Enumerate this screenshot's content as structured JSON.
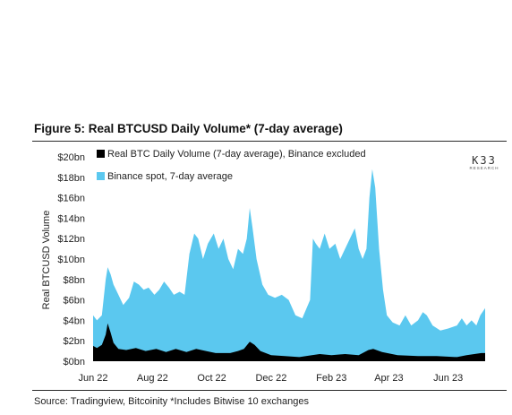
{
  "figure": {
    "title": "Figure 5: Real BTCUSD Daily Volume* (7-day average)",
    "source": "Source: Tradingview, Bitcoinity *Includes Bitwise 10 exchanges"
  },
  "logo": {
    "main": "K33",
    "sub": "RESEARCH"
  },
  "colors": {
    "binance": "#5bc8ef",
    "real": "#000000"
  },
  "chart_data": {
    "type": "area",
    "title": "",
    "xlabel": "",
    "ylabel": "Real BTCUSD Volume",
    "ylim": [
      0,
      20
    ],
    "y_unit": "bn USD",
    "yticks": [
      0,
      2,
      4,
      6,
      8,
      10,
      12,
      14,
      16,
      18,
      20
    ],
    "ytick_labels": [
      "$0bn",
      "$2bn",
      "$4bn",
      "$6bn",
      "$8bn",
      "$10bn",
      "$12bn",
      "$14bn",
      "$16bn",
      "$18bn",
      "$20bn"
    ],
    "xlim": [
      "2022-06-01",
      "2023-07-09"
    ],
    "xticks": [
      "2022-06-01",
      "2022-08-01",
      "2022-10-01",
      "2022-12-01",
      "2023-02-01",
      "2023-04-01",
      "2023-06-01"
    ],
    "xtick_labels": [
      "Jun 22",
      "Aug 22",
      "Oct 22",
      "Dec 22",
      "Feb 23",
      "Apr 23",
      "Jun 23"
    ],
    "legend": [
      "Real BTC Daily Volume (7-day average), Binance excluded",
      "Binance spot, 7-day average"
    ],
    "legend_position": "top-left",
    "stacked": true,
    "series": [
      {
        "name": "Real BTC Daily Volume (7-day average), Binance excluded",
        "color": "#000000",
        "points": [
          [
            "2022-06-01",
            1.5
          ],
          [
            "2022-06-05",
            1.3
          ],
          [
            "2022-06-10",
            1.6
          ],
          [
            "2022-06-14",
            2.6
          ],
          [
            "2022-06-16",
            3.7
          ],
          [
            "2022-06-19",
            2.8
          ],
          [
            "2022-06-22",
            1.8
          ],
          [
            "2022-06-27",
            1.2
          ],
          [
            "2022-07-05",
            1.1
          ],
          [
            "2022-07-15",
            1.3
          ],
          [
            "2022-07-25",
            1.0
          ],
          [
            "2022-08-05",
            1.2
          ],
          [
            "2022-08-15",
            0.9
          ],
          [
            "2022-08-25",
            1.2
          ],
          [
            "2022-09-05",
            0.9
          ],
          [
            "2022-09-15",
            1.2
          ],
          [
            "2022-09-25",
            1.0
          ],
          [
            "2022-10-05",
            0.8
          ],
          [
            "2022-10-20",
            0.8
          ],
          [
            "2022-10-28",
            1.0
          ],
          [
            "2022-11-03",
            1.2
          ],
          [
            "2022-11-09",
            1.9
          ],
          [
            "2022-11-14",
            1.6
          ],
          [
            "2022-11-20",
            1.0
          ],
          [
            "2022-12-01",
            0.6
          ],
          [
            "2022-12-15",
            0.5
          ],
          [
            "2022-12-30",
            0.4
          ],
          [
            "2023-01-12",
            0.6
          ],
          [
            "2023-01-20",
            0.7
          ],
          [
            "2023-02-01",
            0.6
          ],
          [
            "2023-02-15",
            0.7
          ],
          [
            "2023-03-01",
            0.6
          ],
          [
            "2023-03-11",
            1.1
          ],
          [
            "2023-03-16",
            1.2
          ],
          [
            "2023-03-25",
            0.9
          ],
          [
            "2023-04-10",
            0.6
          ],
          [
            "2023-05-01",
            0.5
          ],
          [
            "2023-05-20",
            0.5
          ],
          [
            "2023-06-10",
            0.4
          ],
          [
            "2023-06-20",
            0.6
          ],
          [
            "2023-07-05",
            0.8
          ],
          [
            "2023-07-09",
            0.8
          ]
        ]
      },
      {
        "name": "Binance spot, 7-day average",
        "color": "#5bc8ef",
        "points": [
          [
            "2022-06-01",
            4.5
          ],
          [
            "2022-06-05",
            4.0
          ],
          [
            "2022-06-10",
            4.5
          ],
          [
            "2022-06-14",
            8.0
          ],
          [
            "2022-06-16",
            9.2
          ],
          [
            "2022-06-19",
            8.5
          ],
          [
            "2022-06-22",
            7.5
          ],
          [
            "2022-06-27",
            6.5
          ],
          [
            "2022-07-02",
            5.5
          ],
          [
            "2022-07-08",
            6.2
          ],
          [
            "2022-07-13",
            7.8
          ],
          [
            "2022-07-18",
            7.5
          ],
          [
            "2022-07-23",
            7.0
          ],
          [
            "2022-07-28",
            7.2
          ],
          [
            "2022-08-03",
            6.5
          ],
          [
            "2022-08-08",
            7.0
          ],
          [
            "2022-08-13",
            7.8
          ],
          [
            "2022-08-18",
            7.2
          ],
          [
            "2022-08-23",
            6.5
          ],
          [
            "2022-08-29",
            6.8
          ],
          [
            "2022-09-03",
            6.5
          ],
          [
            "2022-09-08",
            10.5
          ],
          [
            "2022-09-13",
            12.5
          ],
          [
            "2022-09-17",
            12.0
          ],
          [
            "2022-09-22",
            10.0
          ],
          [
            "2022-09-27",
            11.5
          ],
          [
            "2022-10-03",
            12.5
          ],
          [
            "2022-10-08",
            11.0
          ],
          [
            "2022-10-13",
            12.0
          ],
          [
            "2022-10-18",
            10.0
          ],
          [
            "2022-10-23",
            9.0
          ],
          [
            "2022-10-28",
            11.0
          ],
          [
            "2022-11-02",
            10.5
          ],
          [
            "2022-11-06",
            12.0
          ],
          [
            "2022-11-09",
            15.0
          ],
          [
            "2022-11-12",
            13.0
          ],
          [
            "2022-11-16",
            10.0
          ],
          [
            "2022-11-22",
            7.5
          ],
          [
            "2022-11-28",
            6.5
          ],
          [
            "2022-12-05",
            6.2
          ],
          [
            "2022-12-12",
            6.5
          ],
          [
            "2022-12-19",
            6.0
          ],
          [
            "2022-12-26",
            4.5
          ],
          [
            "2023-01-02",
            4.2
          ],
          [
            "2023-01-10",
            6.0
          ],
          [
            "2023-01-13",
            12.0
          ],
          [
            "2023-01-16",
            11.5
          ],
          [
            "2023-01-20",
            11.0
          ],
          [
            "2023-01-25",
            12.5
          ],
          [
            "2023-01-30",
            11.0
          ],
          [
            "2023-02-05",
            11.5
          ],
          [
            "2023-02-10",
            10.0
          ],
          [
            "2023-02-15",
            11.0
          ],
          [
            "2023-02-20",
            12.0
          ],
          [
            "2023-02-25",
            13.0
          ],
          [
            "2023-03-01",
            11.0
          ],
          [
            "2023-03-05",
            10.0
          ],
          [
            "2023-03-09",
            11.0
          ],
          [
            "2023-03-12",
            16.0
          ],
          [
            "2023-03-15",
            18.8
          ],
          [
            "2023-03-18",
            17.0
          ],
          [
            "2023-03-22",
            11.0
          ],
          [
            "2023-03-26",
            7.0
          ],
          [
            "2023-03-30",
            4.5
          ],
          [
            "2023-04-05",
            3.8
          ],
          [
            "2023-04-12",
            3.5
          ],
          [
            "2023-04-18",
            4.5
          ],
          [
            "2023-04-24",
            3.5
          ],
          [
            "2023-05-01",
            4.0
          ],
          [
            "2023-05-06",
            4.8
          ],
          [
            "2023-05-10",
            4.5
          ],
          [
            "2023-05-16",
            3.5
          ],
          [
            "2023-05-24",
            3.0
          ],
          [
            "2023-06-01",
            3.2
          ],
          [
            "2023-06-10",
            3.5
          ],
          [
            "2023-06-15",
            4.2
          ],
          [
            "2023-06-20",
            3.5
          ],
          [
            "2023-06-25",
            4.0
          ],
          [
            "2023-06-30",
            3.5
          ],
          [
            "2023-07-04",
            4.5
          ],
          [
            "2023-07-09",
            5.2
          ]
        ]
      }
    ]
  }
}
